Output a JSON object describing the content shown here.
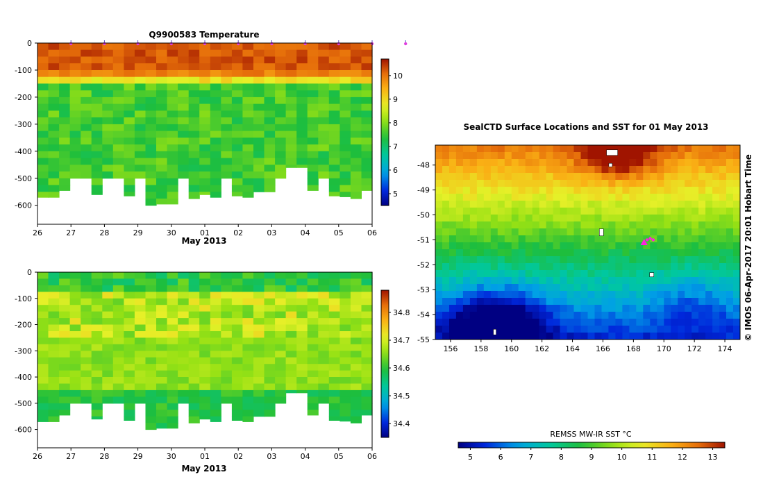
{
  "chart_data": [
    {
      "type": "heatmap",
      "id": "temp",
      "title": "Q9900583  Temperature",
      "xlabel": "May 2013",
      "x_tick_labels": [
        "26",
        "27",
        "28",
        "29",
        "30",
        "01",
        "02",
        "03",
        "04",
        "05",
        "06"
      ],
      "y_tick_labels": [
        "0",
        "-100",
        "-200",
        "-300",
        "-400",
        "-500",
        "-600"
      ],
      "ylim": [
        -670,
        0
      ],
      "colorbar": {
        "range": [
          4.5,
          10.7
        ],
        "tick_labels": [
          "5",
          "6",
          "7",
          "8",
          "9",
          "10"
        ]
      },
      "profile_markers_days": [
        1,
        2,
        3,
        4,
        5,
        6,
        7,
        8,
        9,
        10,
        11
      ],
      "profile_bottom_depths_m": [
        -570,
        -570,
        -545,
        -500,
        -500,
        -560,
        -500,
        -500,
        -565,
        -500,
        -600,
        -595,
        -595,
        -500,
        -575,
        -560,
        -570,
        -500,
        -565,
        -570,
        -550,
        -550,
        -500,
        -460,
        -460,
        -545,
        -500,
        -565,
        -568,
        -575,
        -545
      ],
      "layers_c": [
        {
          "depth_top": 0,
          "depth_bottom": -100,
          "value": 10.2
        },
        {
          "depth_top": -100,
          "depth_bottom": -160,
          "value": 9.0
        },
        {
          "depth_top": -160,
          "depth_bottom": -500,
          "value": 7.5
        }
      ]
    },
    {
      "type": "heatmap",
      "id": "salt",
      "title": "",
      "xlabel": "May 2013",
      "x_tick_labels": [
        "26",
        "27",
        "28",
        "29",
        "30",
        "01",
        "02",
        "03",
        "04",
        "05",
        "06"
      ],
      "y_tick_labels": [
        "0",
        "-100",
        "-200",
        "-300",
        "-400",
        "-500",
        "-600"
      ],
      "ylim": [
        -670,
        0
      ],
      "colorbar": {
        "range": [
          34.35,
          34.88
        ],
        "tick_labels": [
          "34.4",
          "34.5",
          "34.6",
          "34.7",
          "34.8"
        ]
      },
      "profile_bottom_depths_m": [
        -570,
        -570,
        -545,
        -500,
        -500,
        -560,
        -500,
        -500,
        -565,
        -500,
        -600,
        -595,
        -595,
        -500,
        -575,
        -560,
        -570,
        -500,
        -565,
        -570,
        -550,
        -550,
        -500,
        -460,
        -460,
        -545,
        -500,
        -565,
        -568,
        -575,
        -545
      ]
    },
    {
      "type": "heatmap",
      "id": "map",
      "title": "SealCTD Surface Locations and SST for 01 May 2013",
      "x_tick_labels": [
        "156",
        "158",
        "160",
        "162",
        "164",
        "166",
        "168",
        "170",
        "172",
        "174"
      ],
      "y_tick_labels": [
        "-48",
        "-49",
        "-50",
        "-51",
        "-52",
        "-53",
        "-54",
        "-55"
      ],
      "xlim": [
        155,
        175
      ],
      "ylim": [
        -55,
        -47.2
      ],
      "colorbar": {
        "label": "REMSS MW-IR SST °C",
        "range": [
          4.6,
          13.4
        ],
        "tick_labels": [
          "5",
          "6",
          "7",
          "8",
          "9",
          "10",
          "11",
          "12",
          "13"
        ]
      },
      "seal_locations": [
        {
          "lon": 168.7,
          "lat": -51.1
        },
        {
          "lon": 168.9,
          "lat": -51.0
        },
        {
          "lon": 169.1,
          "lat": -50.95
        },
        {
          "lon": 169.3,
          "lat": -51.0
        }
      ],
      "watermark": "© IMOS 06-Apr-2017 20:01 Hobart Time"
    }
  ]
}
